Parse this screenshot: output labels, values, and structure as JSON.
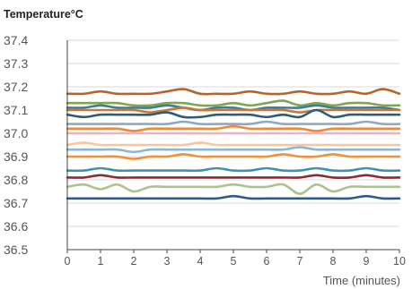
{
  "chart_data": {
    "type": "line",
    "title": "Temperature°C",
    "xlabel": "Time (minutes)",
    "ylabel": "",
    "xlim": [
      0,
      10
    ],
    "ylim": [
      36.5,
      37.4
    ],
    "x_ticks": [
      "0",
      "1",
      "2",
      "3",
      "4",
      "5",
      "6",
      "7",
      "8",
      "9",
      "10"
    ],
    "y_ticks": [
      "36.5",
      "36.6",
      "36.7",
      "36.8",
      "36.9",
      "37.0",
      "37.1",
      "37.2",
      "37.3",
      "37.4"
    ],
    "grid": "horizontal",
    "x": [
      0,
      0.5,
      1,
      1.5,
      2,
      2.5,
      3,
      3.5,
      4,
      4.5,
      5,
      5.5,
      6,
      6.5,
      7,
      7.5,
      8,
      8.5,
      9,
      9.5,
      10
    ],
    "series": [
      {
        "color": "#b5652c",
        "values": [
          37.17,
          37.17,
          37.18,
          37.17,
          37.17,
          37.17,
          37.18,
          37.19,
          37.17,
          37.17,
          37.17,
          37.18,
          37.17,
          37.17,
          37.18,
          37.17,
          37.17,
          37.18,
          37.17,
          37.19,
          37.17
        ]
      },
      {
        "color": "#7fa453",
        "values": [
          37.13,
          37.13,
          37.13,
          37.13,
          37.12,
          37.12,
          37.13,
          37.13,
          37.12,
          37.12,
          37.13,
          37.12,
          37.13,
          37.14,
          37.12,
          37.13,
          37.12,
          37.13,
          37.13,
          37.12,
          37.12
        ]
      },
      {
        "color": "#3b7d9a",
        "values": [
          37.11,
          37.11,
          37.12,
          37.11,
          37.11,
          37.11,
          37.12,
          37.11,
          37.1,
          37.11,
          37.11,
          37.1,
          37.11,
          37.11,
          37.11,
          37.12,
          37.11,
          37.11,
          37.11,
          37.11,
          37.1
        ]
      },
      {
        "color": "#c4783c",
        "values": [
          37.1,
          37.1,
          37.1,
          37.1,
          37.1,
          37.09,
          37.1,
          37.11,
          37.1,
          37.1,
          37.1,
          37.1,
          37.1,
          37.1,
          37.09,
          37.1,
          37.1,
          37.1,
          37.1,
          37.1,
          37.1
        ]
      },
      {
        "color": "#2c5c7a",
        "values": [
          37.08,
          37.07,
          37.08,
          37.08,
          37.08,
          37.08,
          37.09,
          37.07,
          37.07,
          37.08,
          37.08,
          37.08,
          37.07,
          37.08,
          37.07,
          37.1,
          37.07,
          37.08,
          37.08,
          37.08,
          37.08
        ]
      },
      {
        "color": "#8ea9c8",
        "values": [
          37.04,
          37.04,
          37.04,
          37.04,
          37.04,
          37.04,
          37.04,
          37.05,
          37.04,
          37.04,
          37.04,
          37.04,
          37.05,
          37.04,
          37.04,
          37.04,
          37.04,
          37.04,
          37.05,
          37.04,
          37.04
        ]
      },
      {
        "color": "#ec8a3a",
        "values": [
          37.02,
          37.02,
          37.02,
          37.02,
          37.01,
          37.02,
          37.02,
          37.02,
          37.02,
          37.02,
          37.03,
          37.02,
          37.02,
          37.02,
          37.02,
          37.01,
          37.02,
          37.02,
          37.02,
          37.02,
          37.02
        ]
      },
      {
        "color": "#e7b5bd",
        "values": [
          37.0,
          37.0,
          37.0,
          37.0,
          37.0,
          37.0,
          37.0,
          37.0,
          37.0,
          37.0,
          37.0,
          37.0,
          37.0,
          37.0,
          37.0,
          37.0,
          37.0,
          37.0,
          37.0,
          37.0,
          37.0
        ]
      },
      {
        "color": "#f5c6a0",
        "values": [
          36.95,
          36.96,
          36.95,
          36.95,
          36.95,
          36.95,
          36.95,
          36.95,
          36.96,
          36.95,
          36.95,
          36.95,
          36.95,
          36.95,
          36.95,
          36.95,
          36.95,
          36.95,
          36.95,
          36.95,
          36.95
        ]
      },
      {
        "color": "#8ab8cf",
        "values": [
          36.93,
          36.93,
          36.93,
          36.93,
          36.92,
          36.93,
          36.93,
          36.93,
          36.93,
          36.93,
          36.93,
          36.93,
          36.93,
          36.93,
          36.94,
          36.93,
          36.93,
          36.93,
          36.93,
          36.93,
          36.93
        ]
      },
      {
        "color": "#f0913a",
        "values": [
          36.9,
          36.9,
          36.9,
          36.9,
          36.89,
          36.9,
          36.9,
          36.91,
          36.9,
          36.9,
          36.9,
          36.9,
          36.9,
          36.91,
          36.9,
          36.9,
          36.91,
          36.9,
          36.9,
          36.9,
          36.9
        ]
      },
      {
        "color": "#3e93b5",
        "values": [
          36.84,
          36.84,
          36.85,
          36.84,
          36.84,
          36.84,
          36.84,
          36.84,
          36.84,
          36.85,
          36.84,
          36.84,
          36.85,
          36.84,
          36.84,
          36.85,
          36.84,
          36.84,
          36.85,
          36.84,
          36.84
        ]
      },
      {
        "color": "#8c2b33",
        "values": [
          36.81,
          36.81,
          36.82,
          36.81,
          36.81,
          36.81,
          36.81,
          36.81,
          36.81,
          36.81,
          36.81,
          36.81,
          36.81,
          36.81,
          36.81,
          36.82,
          36.81,
          36.81,
          36.82,
          36.81,
          36.81
        ]
      },
      {
        "color": "#a9c58a",
        "values": [
          36.77,
          36.78,
          36.76,
          36.78,
          36.75,
          36.77,
          36.77,
          36.77,
          36.77,
          36.77,
          36.78,
          36.77,
          36.77,
          36.78,
          36.74,
          36.78,
          36.75,
          36.77,
          36.77,
          36.77,
          36.77
        ]
      },
      {
        "color": "#2f5a86",
        "values": [
          36.72,
          36.72,
          36.72,
          36.72,
          36.72,
          36.72,
          36.72,
          36.72,
          36.72,
          36.72,
          36.73,
          36.72,
          36.72,
          36.72,
          36.72,
          36.72,
          36.72,
          36.72,
          36.73,
          36.72,
          36.72
        ]
      }
    ]
  }
}
